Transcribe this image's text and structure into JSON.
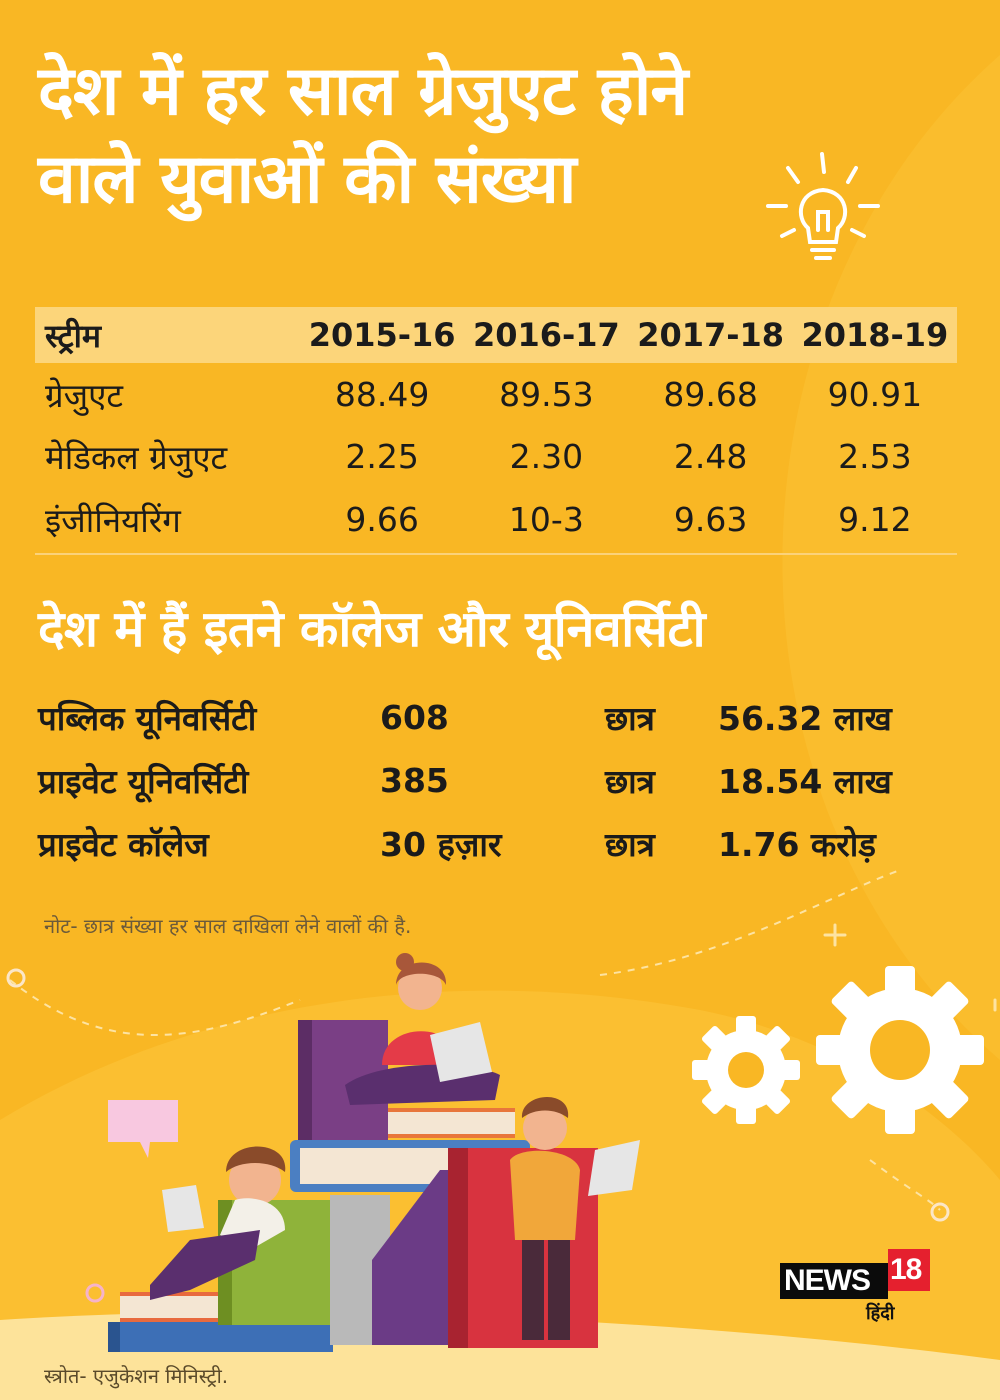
{
  "title": {
    "line1": "देश में हर साल ग्रेजुएट होने",
    "line2": "वाले युवाओं की संख्या"
  },
  "stats_table": {
    "headers": [
      "स्ट्रीम",
      "2015-16",
      "2016-17",
      "2017-18",
      "2018-19"
    ],
    "rows": [
      {
        "label": "ग्रेजुएट",
        "values": [
          "88.49",
          "89.53",
          "89.68",
          "90.91"
        ]
      },
      {
        "label": "मेडिकल ग्रेजुएट",
        "values": [
          "2.25",
          "2.30",
          "2.48",
          "2.53"
        ]
      },
      {
        "label": "इंजीनियरिंग",
        "values": [
          "9.66",
          "10-3",
          "9.63",
          "9.12"
        ]
      }
    ]
  },
  "subtitle": "देश में हैं इतने कॉलेज और यूनिवर्सिटी",
  "colleges": [
    {
      "name": "पब्लिक यूनिवर्सिटी",
      "count": "608",
      "label": "छात्र",
      "students": "56.32 लाख"
    },
    {
      "name": "प्राइवेट यूनिवर्सिटी",
      "count": "385",
      "label": "छात्र",
      "students": "18.54 लाख"
    },
    {
      "name": "प्राइवेट कॉलेज",
      "count": "30 हज़ार",
      "label": "छात्र",
      "students": "1.76 करोड़"
    }
  ],
  "note": "नोट- छात्र संख्या हर साल दाखिला लेने वालों की है.",
  "source": "स्त्रोत- एजुकेशन मिनिस्ट्री.",
  "logo": {
    "brand": "NEWS",
    "number": "18",
    "language": "हिंदी"
  },
  "icons": [
    "lightbulb-icon",
    "gear-icon",
    "speech-bubble-icon"
  ],
  "colors": {
    "background": "#f9b724",
    "title": "#ffffff",
    "table_header": "#fcd57a",
    "text": "#1b1b1b",
    "logo_red": "#e5202e"
  }
}
